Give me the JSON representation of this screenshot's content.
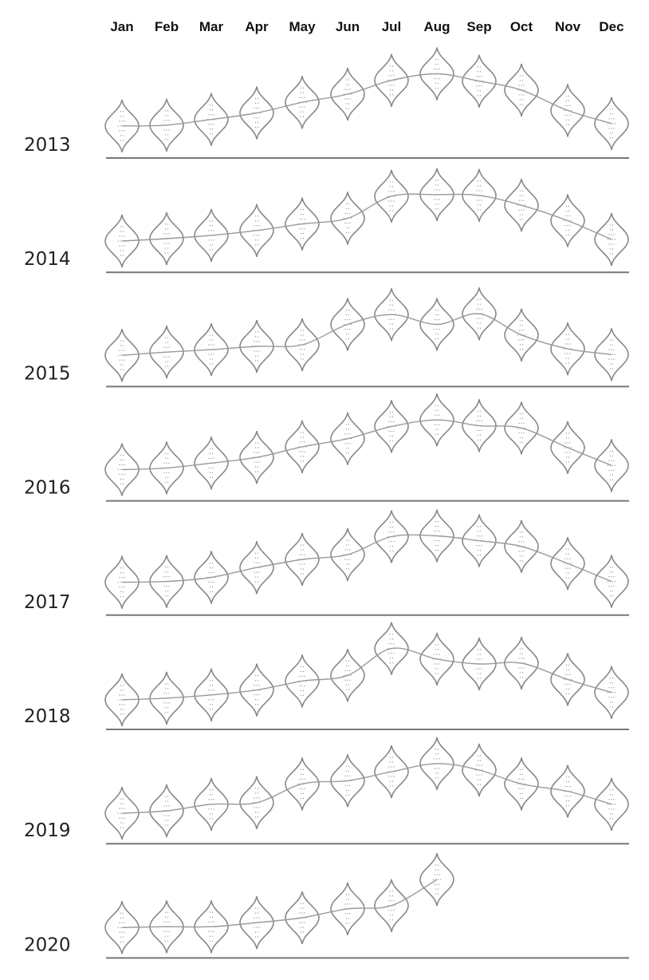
{
  "chart_data": {
    "type": "line",
    "months": [
      "Jan",
      "Feb",
      "Mar",
      "Apr",
      "May",
      "Jun",
      "Jul",
      "Aug",
      "Sep",
      "Oct",
      "Nov",
      "Dec"
    ],
    "years": [
      "2013",
      "2014",
      "2015",
      "2016",
      "2017",
      "2018",
      "2019",
      "2020"
    ],
    "series": [
      {
        "year": "2013",
        "values": [
          0.9,
          1.0,
          1.7,
          2.5,
          3.8,
          4.8,
          6.5,
          7.3,
          6.4,
          5.3,
          2.8,
          1.2
        ]
      },
      {
        "year": "2014",
        "values": [
          0.8,
          1.1,
          1.5,
          2.1,
          2.9,
          3.6,
          6.3,
          6.5,
          6.4,
          5.2,
          3.3,
          1.0
        ]
      },
      {
        "year": "2015",
        "values": [
          0.8,
          1.2,
          1.5,
          1.9,
          2.1,
          4.6,
          5.8,
          4.6,
          5.9,
          3.3,
          1.6,
          0.9
        ]
      },
      {
        "year": "2016",
        "values": [
          0.8,
          1.0,
          1.6,
          2.3,
          3.6,
          4.6,
          6.1,
          6.9,
          6.2,
          5.9,
          3.5,
          1.3
        ]
      },
      {
        "year": "2017",
        "values": [
          1.0,
          1.1,
          1.6,
          2.8,
          3.8,
          4.4,
          6.6,
          6.7,
          6.1,
          5.4,
          3.3,
          1.1
        ]
      },
      {
        "year": "2018",
        "values": [
          0.6,
          0.8,
          1.2,
          1.8,
          2.9,
          3.6,
          6.9,
          5.6,
          5.0,
          5.1,
          3.1,
          1.5
        ]
      },
      {
        "year": "2019",
        "values": [
          0.7,
          1.0,
          1.8,
          2.0,
          4.3,
          4.7,
          5.8,
          6.8,
          6.0,
          4.3,
          3.4,
          1.8
        ]
      },
      {
        "year": "2020",
        "values": [
          0.7,
          0.8,
          0.8,
          1.3,
          1.9,
          3.0,
          3.4,
          6.6
        ]
      }
    ],
    "xlabel": "",
    "ylabel": "",
    "grid": false
  }
}
